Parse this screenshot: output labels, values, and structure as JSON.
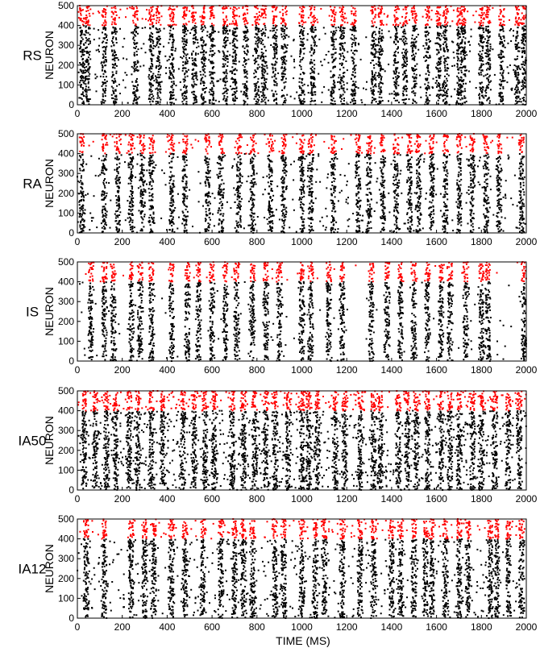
{
  "chart_data": [
    {
      "type": "scatter",
      "row_label": "RS",
      "ylabel": "NEURON",
      "xlim": [
        0,
        2000
      ],
      "ylim": [
        0,
        500
      ],
      "x_ticks": [
        "0",
        "200",
        "400",
        "600",
        "800",
        "1000",
        "1200",
        "1400",
        "1600",
        "1800",
        "2000"
      ],
      "y_ticks": [
        "0",
        "100",
        "200",
        "300",
        "400",
        "500"
      ],
      "series": [
        {
          "color": "#000000",
          "neurons": [
            0,
            400
          ]
        },
        {
          "color": "#ff0000",
          "neurons": [
            400,
            500
          ]
        }
      ],
      "density": 0.55,
      "bursts": [
        20,
        45,
        120,
        165,
        260,
        330,
        360,
        420,
        480,
        520,
        560,
        600,
        660,
        700,
        750,
        800,
        830,
        880,
        920,
        1000,
        1050,
        1140,
        1180,
        1230,
        1320,
        1350,
        1420,
        1460,
        1500,
        1560,
        1610,
        1640,
        1700,
        1720,
        1800,
        1830,
        1890,
        1960,
        1990
      ]
    },
    {
      "type": "scatter",
      "row_label": "RA",
      "ylabel": "NEURON",
      "xlim": [
        0,
        2000
      ],
      "ylim": [
        0,
        500
      ],
      "x_ticks": [
        "0",
        "200",
        "400",
        "600",
        "800",
        "1000",
        "1200",
        "1400",
        "1600",
        "1800",
        "2000"
      ],
      "y_ticks": [
        "0",
        "100",
        "200",
        "300",
        "400",
        "500"
      ],
      "series": [
        {
          "color": "#000000",
          "neurons": [
            0,
            400
          ]
        },
        {
          "color": "#ff0000",
          "neurons": [
            400,
            500
          ]
        }
      ],
      "density": 0.45,
      "bursts": [
        20,
        120,
        180,
        240,
        290,
        330,
        420,
        480,
        580,
        640,
        720,
        780,
        860,
        920,
        1000,
        1040,
        1140,
        1250,
        1300,
        1360,
        1420,
        1480,
        1520,
        1580,
        1640,
        1700,
        1760,
        1820,
        1880,
        1980
      ]
    },
    {
      "type": "scatter",
      "row_label": "IS",
      "ylabel": "NEURON",
      "xlim": [
        0,
        2000
      ],
      "ylim": [
        0,
        500
      ],
      "x_ticks": [
        "0",
        "200",
        "400",
        "600",
        "800",
        "1000",
        "1200",
        "1400",
        "1600",
        "1800",
        "2000"
      ],
      "y_ticks": [
        "0",
        "100",
        "200",
        "300",
        "400",
        "500"
      ],
      "series": [
        {
          "color": "#000000",
          "neurons": [
            0,
            400
          ]
        },
        {
          "color": "#ff0000",
          "neurons": [
            400,
            500
          ]
        }
      ],
      "density": 0.15,
      "bursts": [
        60,
        120,
        160,
        240,
        280,
        330,
        420,
        490,
        540,
        600,
        660,
        710,
        780,
        840,
        900,
        1000,
        1040,
        1120,
        1180,
        1310,
        1380,
        1440,
        1500,
        1560,
        1620,
        1660,
        1730,
        1800,
        1830,
        1990
      ]
    },
    {
      "type": "scatter",
      "row_label": "IA50",
      "ylabel": "NEURON",
      "xlim": [
        0,
        2000
      ],
      "ylim": [
        0,
        500
      ],
      "x_ticks": [
        "0",
        "200",
        "400",
        "600",
        "800",
        "1000",
        "1200",
        "1400",
        "1600",
        "1800",
        "2000"
      ],
      "y_ticks": [
        "0",
        "100",
        "200",
        "300",
        "400",
        "500"
      ],
      "series": [
        {
          "color": "#000000",
          "neurons": [
            0,
            400
          ]
        },
        {
          "color": "#ff0000",
          "neurons": [
            400,
            500
          ]
        }
      ],
      "density": 1.0,
      "bursts": [
        30,
        80,
        130,
        170,
        230,
        270,
        330,
        380,
        470,
        520,
        570,
        610,
        690,
        740,
        790,
        840,
        880,
        940,
        1000,
        1030,
        1070,
        1150,
        1190,
        1260,
        1320,
        1350,
        1430,
        1470,
        1510,
        1560,
        1620,
        1660,
        1700,
        1760,
        1800,
        1860,
        1920,
        1970
      ]
    },
    {
      "type": "scatter",
      "row_label": "IA12",
      "ylabel": "NEURON",
      "xlim": [
        0,
        2000
      ],
      "ylim": [
        0,
        500
      ],
      "x_ticks": [
        "0",
        "200",
        "400",
        "600",
        "800",
        "1000",
        "1200",
        "1400",
        "1600",
        "1800",
        "2000"
      ],
      "y_ticks": [
        "0",
        "100",
        "200",
        "300",
        "400",
        "500"
      ],
      "series": [
        {
          "color": "#000000",
          "neurons": [
            0,
            400
          ]
        },
        {
          "color": "#ff0000",
          "neurons": [
            400,
            500
          ]
        }
      ],
      "density": 0.6,
      "bursts": [
        40,
        120,
        240,
        300,
        340,
        420,
        480,
        560,
        640,
        700,
        740,
        780,
        880,
        920,
        1000,
        1060,
        1100,
        1180,
        1260,
        1320,
        1400,
        1440,
        1500,
        1550,
        1580,
        1640,
        1700,
        1740,
        1840,
        1870,
        1920,
        1980
      ]
    }
  ],
  "xlabel": "TIME (MS)"
}
